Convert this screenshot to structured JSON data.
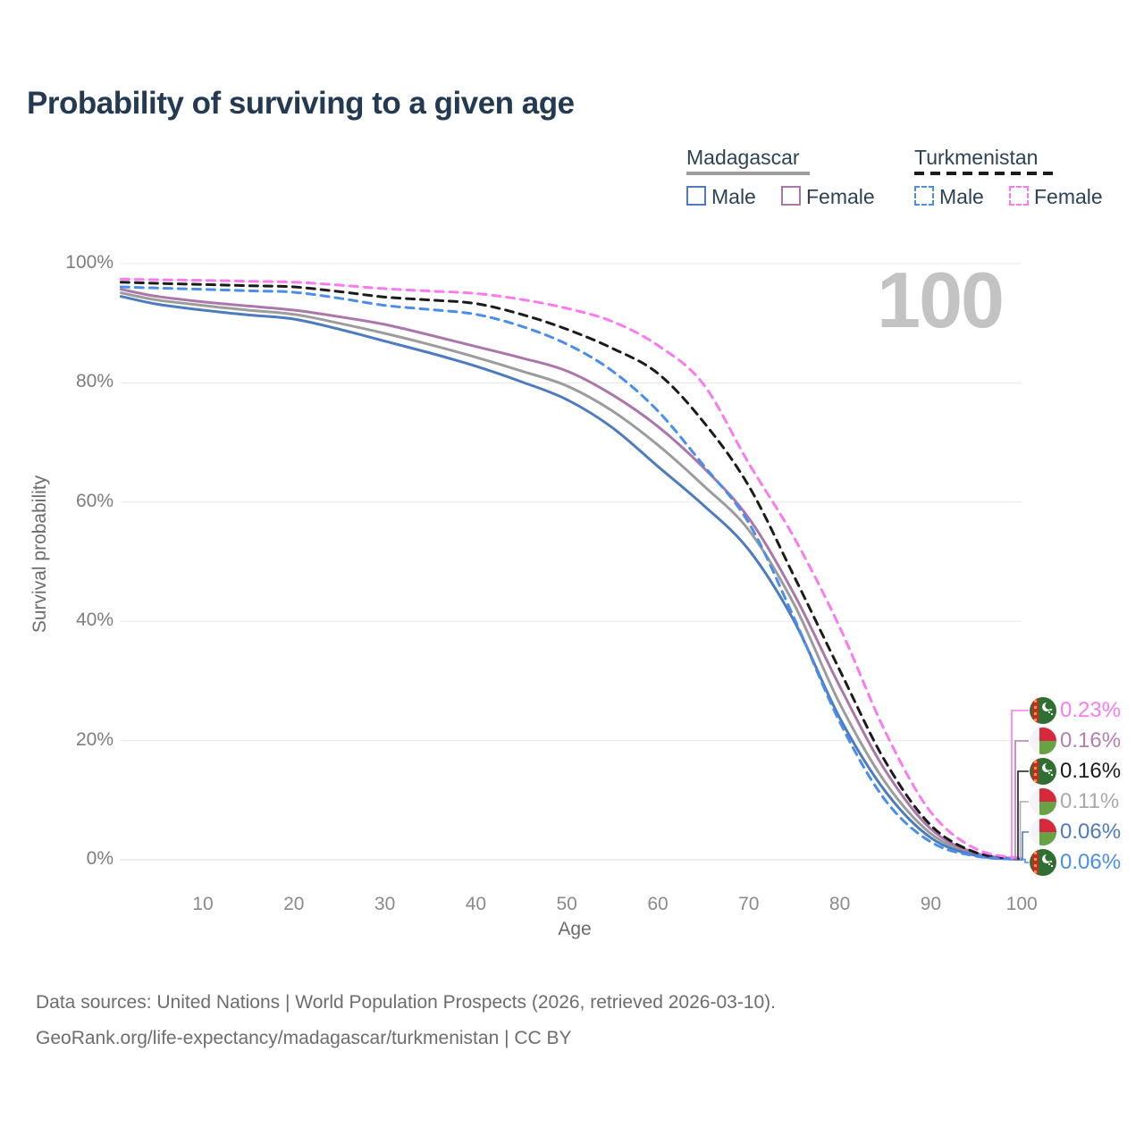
{
  "title": "Probability of surviving to a given age",
  "watermark": "100",
  "legend": {
    "groups": [
      {
        "label": "Madagascar",
        "line_style": "solid",
        "line_color": "#9c9c9c",
        "items": [
          {
            "label": "Male",
            "color": "#4c7bc0",
            "dashed": false
          },
          {
            "label": "Female",
            "color": "#ab77ab",
            "dashed": false
          }
        ]
      },
      {
        "label": "Turkmenistan",
        "line_style": "dashed",
        "line_color": "#1b1b1b",
        "items": [
          {
            "label": "Male",
            "color": "#4a8deb",
            "dashed": true
          },
          {
            "label": "Female",
            "color": "#fb7af0",
            "dashed": true
          }
        ]
      }
    ]
  },
  "axes": {
    "x_label": "Age",
    "y_label": "Survival probability",
    "x_ticks": [
      10,
      20,
      30,
      40,
      50,
      60,
      70,
      80,
      90,
      100
    ],
    "y_tick_values": [
      0,
      20,
      40,
      60,
      80,
      100
    ],
    "y_tick_labels": [
      "0%",
      "20%",
      "40%",
      "60%",
      "80%",
      "100%"
    ]
  },
  "chart_data": {
    "type": "line",
    "title": "Probability of surviving to a given age",
    "xlabel": "Age",
    "ylabel": "Survival probability",
    "xlim": [
      1,
      100
    ],
    "ylim": [
      0,
      100
    ],
    "grid": "horizontal-only",
    "legend_position": "top-right",
    "x": [
      1,
      5,
      10,
      15,
      20,
      25,
      30,
      35,
      40,
      45,
      50,
      55,
      60,
      65,
      70,
      75,
      80,
      85,
      90,
      95,
      100
    ],
    "series": [
      {
        "id": "mg_both",
        "name": "Madagascar",
        "color": "#9c9c9c",
        "dashed": false,
        "values": [
          95.1,
          93.9,
          93.0,
          92.2,
          91.5,
          90.0,
          88.3,
          86.4,
          84.3,
          82.0,
          79.5,
          75.3,
          69.6,
          62.8,
          55.3,
          42.8,
          26.2,
          13.0,
          4.4,
          0.9,
          0.11
        ]
      },
      {
        "id": "mg_female",
        "name": "Madagascar Female",
        "color": "#ab77ab",
        "dashed": false,
        "values": [
          95.7,
          94.5,
          93.6,
          92.9,
          92.2,
          91.1,
          89.8,
          88.0,
          86.1,
          84.2,
          82.0,
          78.0,
          72.7,
          65.8,
          57.3,
          44.5,
          29.1,
          15.0,
          5.2,
          1.1,
          0.16
        ]
      },
      {
        "id": "mg_male",
        "name": "Madagascar Male",
        "color": "#4c7bc0",
        "dashed": false,
        "values": [
          94.5,
          93.2,
          92.2,
          91.4,
          90.7,
          89.0,
          87.0,
          85.0,
          82.8,
          80.2,
          77.2,
          72.5,
          66.0,
          59.5,
          52.0,
          40.0,
          23.8,
          11.5,
          3.7,
          0.7,
          0.06
        ]
      },
      {
        "id": "tm_both",
        "name": "Turkmenistan",
        "color": "#1b1b1b",
        "dashed": true,
        "values": [
          96.9,
          96.7,
          96.5,
          96.3,
          96.1,
          95.3,
          94.4,
          93.9,
          93.3,
          91.5,
          89.0,
          85.8,
          81.6,
          73.5,
          62.7,
          47.5,
          31.8,
          16.5,
          5.8,
          1.2,
          0.16
        ]
      },
      {
        "id": "tm_male",
        "name": "Turkmenistan Male",
        "color": "#4a8deb",
        "dashed": true,
        "values": [
          96.1,
          95.9,
          95.7,
          95.45,
          95.2,
          94.2,
          93.0,
          92.3,
          91.5,
          89.5,
          86.5,
          82.0,
          75.3,
          66.2,
          56.5,
          40.5,
          23.1,
          10.0,
          3.0,
          0.6,
          0.06
        ]
      },
      {
        "id": "tm_female",
        "name": "Turkmenistan Female",
        "color": "#fb7af0",
        "dashed": true,
        "values": [
          97.4,
          97.3,
          97.2,
          97.05,
          96.9,
          96.4,
          95.8,
          95.4,
          95.0,
          94.0,
          92.5,
          90.3,
          86.3,
          79.8,
          66.5,
          54.0,
          39.0,
          21.5,
          8.0,
          1.8,
          0.23
        ]
      }
    ]
  },
  "end_labels": [
    {
      "series": "tm_female",
      "flag": "tm",
      "text": "0.23%",
      "color": "#fb7af0"
    },
    {
      "series": "mg_female",
      "flag": "mg",
      "text": "0.16%",
      "color": "#b27fb2"
    },
    {
      "series": "tm_both",
      "flag": "tm",
      "text": "0.16%",
      "color": "#1a1a1a"
    },
    {
      "series": "mg_both",
      "flag": "mg",
      "text": "0.11%",
      "color": "#a9a9a9"
    },
    {
      "series": "mg_male",
      "flag": "mg",
      "text": "0.06%",
      "color": "#4c7bc0"
    },
    {
      "series": "tm_male",
      "flag": "tm",
      "text": "0.06%",
      "color": "#4a8deb"
    }
  ],
  "flag_colors": {
    "mg": {
      "white": "#f4f4f4",
      "red": "#d8293c",
      "green": "#69a244"
    },
    "tm": {
      "green": "#2f7032",
      "red": "#c42a2a",
      "gold": "#d9a32f",
      "white": "#ffffff"
    }
  },
  "footer": {
    "line1": "Data sources: United Nations | World Population Prospects (2026, retrieved 2026-03-10).",
    "line2": "GeoRank.org/life-expectancy/madagascar/turkmenistan | CC BY"
  }
}
